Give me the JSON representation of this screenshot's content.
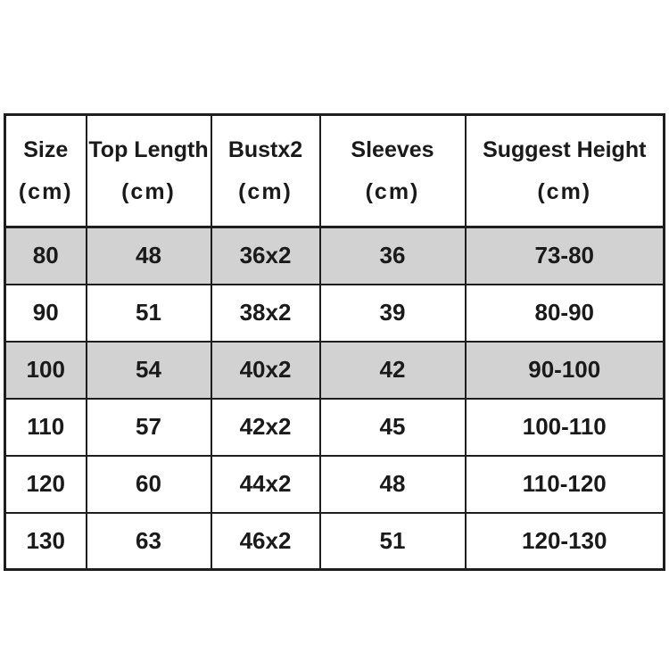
{
  "chart_data": {
    "type": "table",
    "columns": [
      {
        "label": "Size",
        "unit": "(cm)"
      },
      {
        "label": "Top Length",
        "unit": "(cm)"
      },
      {
        "label": "Bustx2",
        "unit": "(cm)"
      },
      {
        "label": "Sleeves",
        "unit": "(cm)"
      },
      {
        "label": "Suggest Height",
        "unit": "(cm)"
      }
    ],
    "rows": [
      [
        "80",
        "48",
        "36x2",
        "36",
        "73-80"
      ],
      [
        "90",
        "51",
        "38x2",
        "39",
        "80-90"
      ],
      [
        "100",
        "54",
        "40x2",
        "42",
        "90-100"
      ],
      [
        "110",
        "57",
        "42x2",
        "45",
        "100-110"
      ],
      [
        "120",
        "60",
        "44x2",
        "48",
        "110-120"
      ],
      [
        "130",
        "63",
        "46x2",
        "51",
        "120-130"
      ]
    ],
    "layout_hints": {
      "shaded_row_indices": [
        0,
        2
      ],
      "grid": "on",
      "colors": {
        "row_shade": "#d2d2d2",
        "border": "#1e1e1e",
        "text": "#1a1a1a",
        "background": "#ffffff"
      }
    }
  }
}
